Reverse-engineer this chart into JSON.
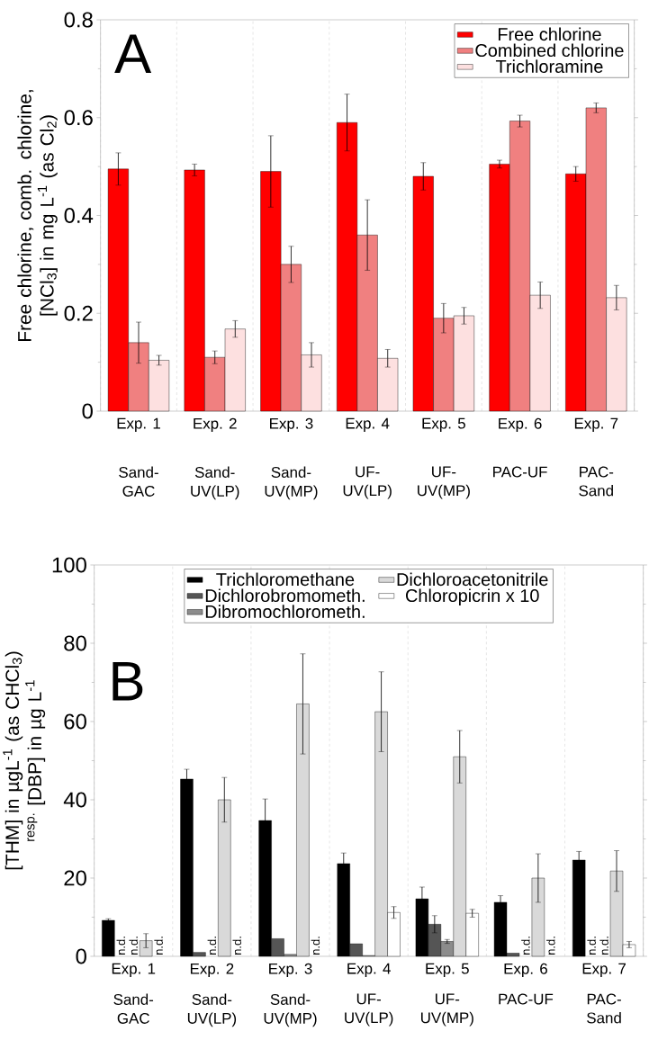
{
  "chart_data": [
    {
      "type": "bar",
      "title": "A",
      "ylabel": "Free chlorine, comb. chlorine, [NCl$_{3}$] in mg L$^{-1}$ (as Cl$_{2}$)",
      "categories": [
        "Exp. 1",
        "Exp. 2",
        "Exp. 3",
        "Exp. 4",
        "Exp. 5",
        "Exp. 6",
        "Exp. 7"
      ],
      "annotations": [
        "Sand-GAC",
        "Sand-UV(LP)",
        "Sand-UV(MP)",
        "UF-UV(LP)",
        "UF-UV(MP)",
        "PAC-UF",
        "PAC-Sand"
      ],
      "series": [
        {
          "name": "Free chlorine",
          "color": "#ff0000",
          "values": [
            0.495,
            0.493,
            0.49,
            0.59,
            0.48,
            0.505,
            0.485
          ],
          "errors": [
            0.033,
            0.012,
            0.073,
            0.058,
            0.028,
            0.008,
            0.015
          ]
        },
        {
          "name": "Combined chlorine",
          "color": "#f08080",
          "values": [
            0.14,
            0.11,
            0.3,
            0.36,
            0.19,
            0.593,
            0.62
          ],
          "errors": [
            0.042,
            0.013,
            0.037,
            0.072,
            0.03,
            0.012,
            0.01
          ]
        },
        {
          "name": "Trichloramine",
          "color": "#fde0e0",
          "values": [
            0.104,
            0.168,
            0.115,
            0.108,
            0.195,
            0.237,
            0.232
          ],
          "errors": [
            0.01,
            0.017,
            0.025,
            0.018,
            0.017,
            0.027,
            0.025
          ]
        }
      ],
      "ylim": [
        0,
        0.8
      ],
      "yticks": [
        0,
        0.2,
        0.4,
        0.6,
        0.8
      ],
      "grid": "x",
      "legend": "top right"
    },
    {
      "type": "bar",
      "title": "B",
      "ylabel": "[THM] in µgL$^{-1}$ (as CHCl$_{3}$) $^{resp.}$ [DBP] in µg L$^{-1}$",
      "categories": [
        "Exp. 1",
        "Exp. 2",
        "Exp. 3",
        "Exp. 4",
        "Exp. 5",
        "Exp. 6",
        "Exp. 7"
      ],
      "annotations": [
        "Sand-GAC",
        "Sand-UV(LP)",
        "Sand-UV(MP)",
        "UF-UV(LP)",
        "UF-UV(MP)",
        "PAC-UF",
        "PAC-Sand"
      ],
      "series": [
        {
          "name": "Trichloromethane",
          "color": "#000000",
          "values": [
            9.2,
            45.3,
            34.7,
            23.7,
            14.7,
            13.8,
            24.6
          ],
          "errors": [
            0.4,
            2.5,
            5.5,
            2.7,
            3.0,
            1.7,
            2.2
          ]
        },
        {
          "name": "Dichlorobromometh.",
          "color": "#555555",
          "values": [
            null,
            1.0,
            4.5,
            3.2,
            8.2,
            0.8,
            null
          ],
          "errors": [
            null,
            null,
            null,
            null,
            2.2,
            null,
            null
          ],
          "value_labels": [
            "n.d.",
            null,
            null,
            null,
            null,
            null,
            "n.d."
          ]
        },
        {
          "name": "Dibromochlorometh.",
          "color": "#8c8c8c",
          "values": [
            null,
            null,
            0.5,
            0.2,
            3.8,
            null,
            null
          ],
          "errors": [
            null,
            null,
            null,
            null,
            0.5,
            null,
            null
          ],
          "value_labels": [
            "n.d.",
            "n.d.",
            null,
            null,
            null,
            "n.d.",
            "n.d."
          ]
        },
        {
          "name": "Dichloroacetonitrile",
          "color": "#d9d9d9",
          "values": [
            4.0,
            40.0,
            64.5,
            62.5,
            51.0,
            20.0,
            21.8
          ],
          "errors": [
            1.8,
            5.7,
            12.8,
            10.2,
            6.7,
            6.2,
            5.2
          ]
        },
        {
          "name": "Chloropicrin x 10",
          "color": "#ffffff",
          "values": [
            null,
            null,
            null,
            11.2,
            11.0,
            null,
            3.0
          ],
          "errors": [
            null,
            null,
            null,
            1.5,
            1.0,
            null,
            0.8
          ],
          "value_labels": [
            "n.d.",
            "n.d.",
            "n.d.",
            null,
            null,
            "n.d.",
            null
          ]
        }
      ],
      "ylim": [
        0,
        100
      ],
      "yticks": [
        0,
        20,
        40,
        60,
        80,
        100
      ],
      "grid": "x",
      "legend": "top"
    }
  ]
}
